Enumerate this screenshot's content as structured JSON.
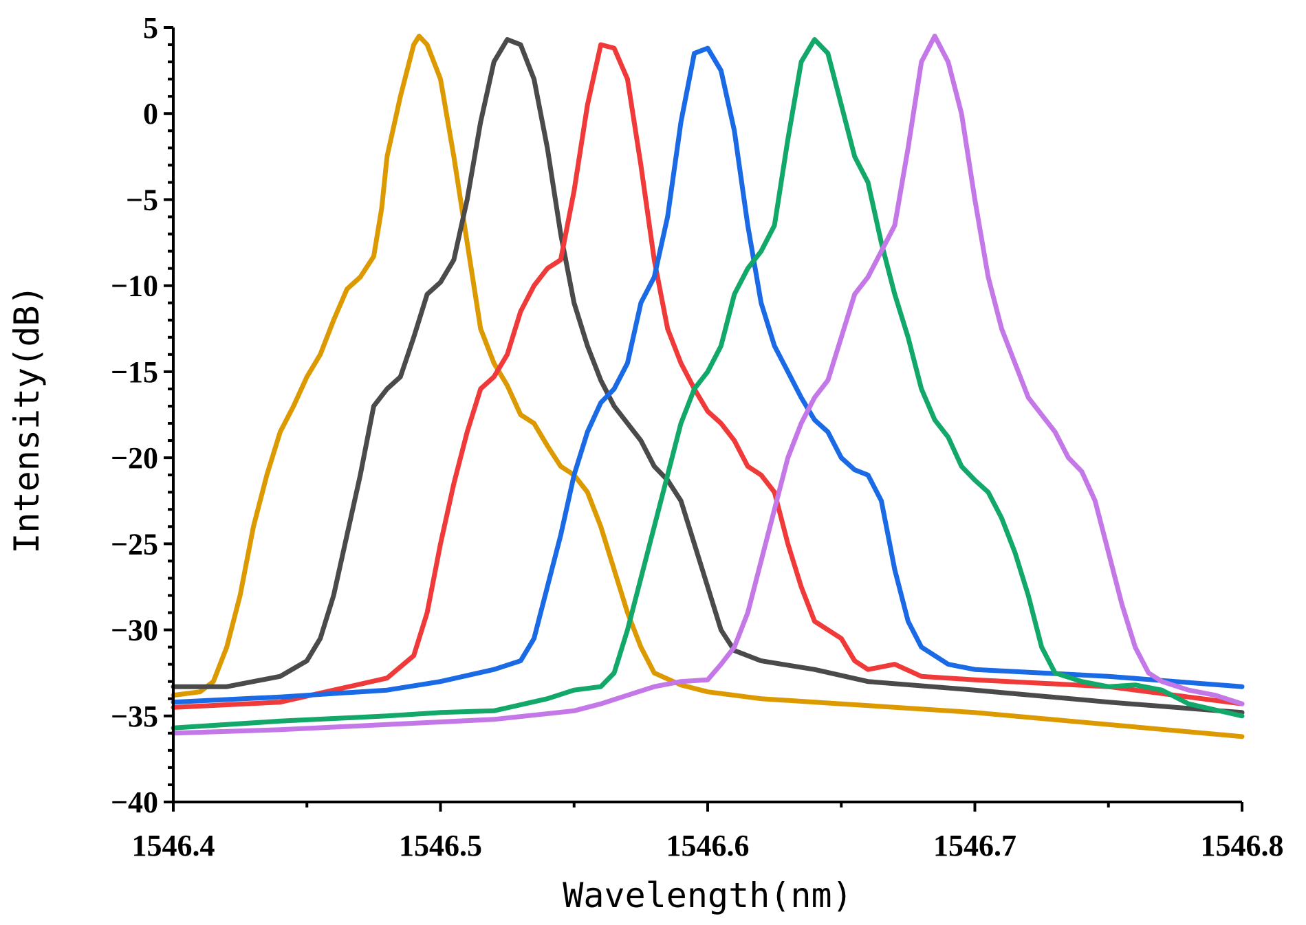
{
  "chart_data": {
    "type": "line",
    "title": "",
    "xlabel": "Wavelength(nm)",
    "ylabel": "Intensity(dB)",
    "xlim": [
      1546.4,
      1546.8
    ],
    "ylim": [
      -40,
      5
    ],
    "x_ticks": [
      1546.4,
      1546.5,
      1546.6,
      1546.7,
      1546.8
    ],
    "x_tick_labels": [
      "1546.4",
      "1546.5",
      "1546.6",
      "1546.7",
      "1546.8"
    ],
    "x_minor_step": 0.05,
    "y_ticks": [
      5,
      0,
      -5,
      -10,
      -15,
      -20,
      -25,
      -30,
      -35,
      -40
    ],
    "y_tick_labels": [
      "5",
      "0",
      "−5",
      "−10",
      "−15",
      "−20",
      "−25",
      "−30",
      "−35",
      "−40"
    ],
    "y_minor_step": 1,
    "grid": false,
    "series": [
      {
        "name": "orange",
        "color": "#DC9A00",
        "points": [
          [
            1546.4,
            -33.8
          ],
          [
            1546.41,
            -33.6
          ],
          [
            1546.415,
            -33.0
          ],
          [
            1546.42,
            -31.0
          ],
          [
            1546.425,
            -28.0
          ],
          [
            1546.43,
            -24.0
          ],
          [
            1546.435,
            -21.0
          ],
          [
            1546.44,
            -18.5
          ],
          [
            1546.445,
            -17.0
          ],
          [
            1546.45,
            -15.3
          ],
          [
            1546.455,
            -14.0
          ],
          [
            1546.46,
            -12.0
          ],
          [
            1546.465,
            -10.2
          ],
          [
            1546.47,
            -9.5
          ],
          [
            1546.475,
            -8.3
          ],
          [
            1546.478,
            -5.5
          ],
          [
            1546.48,
            -2.5
          ],
          [
            1546.485,
            1.0
          ],
          [
            1546.49,
            4.0
          ],
          [
            1546.492,
            4.5
          ],
          [
            1546.495,
            4.0
          ],
          [
            1546.5,
            2.0
          ],
          [
            1546.505,
            -2.5
          ],
          [
            1546.51,
            -7.5
          ],
          [
            1546.515,
            -12.5
          ],
          [
            1546.52,
            -14.5
          ],
          [
            1546.525,
            -15.8
          ],
          [
            1546.53,
            -17.5
          ],
          [
            1546.535,
            -18.0
          ],
          [
            1546.54,
            -19.3
          ],
          [
            1546.545,
            -20.5
          ],
          [
            1546.55,
            -21.0
          ],
          [
            1546.555,
            -22.0
          ],
          [
            1546.56,
            -24.0
          ],
          [
            1546.565,
            -26.5
          ],
          [
            1546.57,
            -29.0
          ],
          [
            1546.575,
            -31.0
          ],
          [
            1546.58,
            -32.5
          ],
          [
            1546.59,
            -33.2
          ],
          [
            1546.6,
            -33.6
          ],
          [
            1546.62,
            -34.0
          ],
          [
            1546.65,
            -34.3
          ],
          [
            1546.7,
            -34.8
          ],
          [
            1546.75,
            -35.5
          ],
          [
            1546.8,
            -36.2
          ]
        ]
      },
      {
        "name": "dark-gray",
        "color": "#4A4A4A",
        "points": [
          [
            1546.4,
            -33.3
          ],
          [
            1546.42,
            -33.3
          ],
          [
            1546.43,
            -33.0
          ],
          [
            1546.44,
            -32.7
          ],
          [
            1546.45,
            -31.8
          ],
          [
            1546.455,
            -30.5
          ],
          [
            1546.46,
            -28.0
          ],
          [
            1546.465,
            -24.5
          ],
          [
            1546.47,
            -21.0
          ],
          [
            1546.475,
            -17.0
          ],
          [
            1546.48,
            -16.0
          ],
          [
            1546.485,
            -15.3
          ],
          [
            1546.49,
            -13.0
          ],
          [
            1546.495,
            -10.5
          ],
          [
            1546.5,
            -9.8
          ],
          [
            1546.505,
            -8.5
          ],
          [
            1546.51,
            -5.0
          ],
          [
            1546.515,
            -0.5
          ],
          [
            1546.52,
            3.0
          ],
          [
            1546.525,
            4.3
          ],
          [
            1546.53,
            4.0
          ],
          [
            1546.535,
            2.0
          ],
          [
            1546.54,
            -2.0
          ],
          [
            1546.545,
            -7.0
          ],
          [
            1546.55,
            -11.0
          ],
          [
            1546.555,
            -13.5
          ],
          [
            1546.56,
            -15.5
          ],
          [
            1546.565,
            -17.0
          ],
          [
            1546.57,
            -18.0
          ],
          [
            1546.575,
            -19.0
          ],
          [
            1546.58,
            -20.5
          ],
          [
            1546.585,
            -21.3
          ],
          [
            1546.59,
            -22.5
          ],
          [
            1546.595,
            -25.0
          ],
          [
            1546.6,
            -27.5
          ],
          [
            1546.605,
            -30.0
          ],
          [
            1546.61,
            -31.2
          ],
          [
            1546.62,
            -31.8
          ],
          [
            1546.64,
            -32.3
          ],
          [
            1546.66,
            -33.0
          ],
          [
            1546.7,
            -33.5
          ],
          [
            1546.75,
            -34.2
          ],
          [
            1546.8,
            -34.8
          ]
        ]
      },
      {
        "name": "red",
        "color": "#F03A3A",
        "points": [
          [
            1546.4,
            -34.5
          ],
          [
            1546.44,
            -34.2
          ],
          [
            1546.46,
            -33.5
          ],
          [
            1546.48,
            -32.8
          ],
          [
            1546.49,
            -31.5
          ],
          [
            1546.495,
            -29.0
          ],
          [
            1546.5,
            -25.0
          ],
          [
            1546.505,
            -21.5
          ],
          [
            1546.51,
            -18.5
          ],
          [
            1546.515,
            -16.0
          ],
          [
            1546.52,
            -15.3
          ],
          [
            1546.525,
            -14.0
          ],
          [
            1546.53,
            -11.5
          ],
          [
            1546.535,
            -10.0
          ],
          [
            1546.54,
            -9.0
          ],
          [
            1546.545,
            -8.5
          ],
          [
            1546.55,
            -4.5
          ],
          [
            1546.555,
            0.5
          ],
          [
            1546.56,
            4.0
          ],
          [
            1546.565,
            3.8
          ],
          [
            1546.57,
            2.0
          ],
          [
            1546.575,
            -3.0
          ],
          [
            1546.58,
            -8.5
          ],
          [
            1546.585,
            -12.5
          ],
          [
            1546.59,
            -14.5
          ],
          [
            1546.595,
            -16.0
          ],
          [
            1546.6,
            -17.3
          ],
          [
            1546.605,
            -18.0
          ],
          [
            1546.61,
            -19.0
          ],
          [
            1546.615,
            -20.5
          ],
          [
            1546.62,
            -21.0
          ],
          [
            1546.625,
            -22.0
          ],
          [
            1546.63,
            -25.0
          ],
          [
            1546.635,
            -27.5
          ],
          [
            1546.64,
            -29.5
          ],
          [
            1546.65,
            -30.5
          ],
          [
            1546.655,
            -31.8
          ],
          [
            1546.66,
            -32.3
          ],
          [
            1546.67,
            -32.0
          ],
          [
            1546.68,
            -32.7
          ],
          [
            1546.7,
            -32.9
          ],
          [
            1546.75,
            -33.3
          ],
          [
            1546.8,
            -34.3
          ]
        ]
      },
      {
        "name": "blue",
        "color": "#1A6AE6",
        "points": [
          [
            1546.4,
            -34.2
          ],
          [
            1546.44,
            -33.9
          ],
          [
            1546.48,
            -33.5
          ],
          [
            1546.5,
            -33.0
          ],
          [
            1546.52,
            -32.3
          ],
          [
            1546.53,
            -31.8
          ],
          [
            1546.535,
            -30.5
          ],
          [
            1546.54,
            -27.5
          ],
          [
            1546.545,
            -24.5
          ],
          [
            1546.55,
            -21.0
          ],
          [
            1546.555,
            -18.5
          ],
          [
            1546.56,
            -16.8
          ],
          [
            1546.565,
            -16.0
          ],
          [
            1546.57,
            -14.5
          ],
          [
            1546.575,
            -11.0
          ],
          [
            1546.58,
            -9.5
          ],
          [
            1546.585,
            -6.0
          ],
          [
            1546.59,
            -0.5
          ],
          [
            1546.595,
            3.5
          ],
          [
            1546.6,
            3.8
          ],
          [
            1546.605,
            2.5
          ],
          [
            1546.61,
            -1.0
          ],
          [
            1546.615,
            -6.5
          ],
          [
            1546.62,
            -11.0
          ],
          [
            1546.625,
            -13.5
          ],
          [
            1546.63,
            -15.0
          ],
          [
            1546.635,
            -16.5
          ],
          [
            1546.64,
            -17.8
          ],
          [
            1546.645,
            -18.5
          ],
          [
            1546.65,
            -20.0
          ],
          [
            1546.655,
            -20.7
          ],
          [
            1546.66,
            -21.0
          ],
          [
            1546.665,
            -22.5
          ],
          [
            1546.67,
            -26.5
          ],
          [
            1546.675,
            -29.5
          ],
          [
            1546.68,
            -31.0
          ],
          [
            1546.69,
            -32.0
          ],
          [
            1546.7,
            -32.3
          ],
          [
            1546.75,
            -32.7
          ],
          [
            1546.8,
            -33.3
          ]
        ]
      },
      {
        "name": "green",
        "color": "#12A86A",
        "points": [
          [
            1546.4,
            -35.7
          ],
          [
            1546.44,
            -35.3
          ],
          [
            1546.48,
            -35.0
          ],
          [
            1546.5,
            -34.8
          ],
          [
            1546.52,
            -34.7
          ],
          [
            1546.54,
            -34.0
          ],
          [
            1546.55,
            -33.5
          ],
          [
            1546.56,
            -33.3
          ],
          [
            1546.565,
            -32.5
          ],
          [
            1546.57,
            -30.0
          ],
          [
            1546.575,
            -27.0
          ],
          [
            1546.58,
            -24.0
          ],
          [
            1546.585,
            -21.0
          ],
          [
            1546.59,
            -18.0
          ],
          [
            1546.595,
            -16.0
          ],
          [
            1546.6,
            -15.0
          ],
          [
            1546.605,
            -13.5
          ],
          [
            1546.61,
            -10.5
          ],
          [
            1546.615,
            -9.0
          ],
          [
            1546.62,
            -8.0
          ],
          [
            1546.625,
            -6.5
          ],
          [
            1546.63,
            -1.5
          ],
          [
            1546.635,
            3.0
          ],
          [
            1546.64,
            4.3
          ],
          [
            1546.645,
            3.5
          ],
          [
            1546.65,
            0.5
          ],
          [
            1546.655,
            -2.5
          ],
          [
            1546.66,
            -4.0
          ],
          [
            1546.665,
            -7.5
          ],
          [
            1546.67,
            -10.5
          ],
          [
            1546.675,
            -13.0
          ],
          [
            1546.68,
            -16.0
          ],
          [
            1546.685,
            -17.8
          ],
          [
            1546.69,
            -18.8
          ],
          [
            1546.695,
            -20.5
          ],
          [
            1546.7,
            -21.3
          ],
          [
            1546.705,
            -22.0
          ],
          [
            1546.71,
            -23.5
          ],
          [
            1546.715,
            -25.5
          ],
          [
            1546.72,
            -28.0
          ],
          [
            1546.725,
            -31.0
          ],
          [
            1546.73,
            -32.5
          ],
          [
            1546.74,
            -33.0
          ],
          [
            1546.75,
            -33.3
          ],
          [
            1546.76,
            -33.2
          ],
          [
            1546.77,
            -33.5
          ],
          [
            1546.78,
            -34.3
          ],
          [
            1546.8,
            -35.0
          ]
        ]
      },
      {
        "name": "purple",
        "color": "#C478E8",
        "points": [
          [
            1546.4,
            -36.0
          ],
          [
            1546.44,
            -35.8
          ],
          [
            1546.48,
            -35.5
          ],
          [
            1546.52,
            -35.2
          ],
          [
            1546.55,
            -34.7
          ],
          [
            1546.56,
            -34.3
          ],
          [
            1546.57,
            -33.8
          ],
          [
            1546.58,
            -33.3
          ],
          [
            1546.59,
            -33.0
          ],
          [
            1546.6,
            -32.9
          ],
          [
            1546.605,
            -32.0
          ],
          [
            1546.61,
            -31.0
          ],
          [
            1546.615,
            -29.0
          ],
          [
            1546.62,
            -26.0
          ],
          [
            1546.625,
            -23.0
          ],
          [
            1546.63,
            -20.0
          ],
          [
            1546.635,
            -18.0
          ],
          [
            1546.64,
            -16.5
          ],
          [
            1546.645,
            -15.5
          ],
          [
            1546.65,
            -13.0
          ],
          [
            1546.655,
            -10.5
          ],
          [
            1546.66,
            -9.5
          ],
          [
            1546.665,
            -8.0
          ],
          [
            1546.67,
            -6.5
          ],
          [
            1546.675,
            -2.0
          ],
          [
            1546.68,
            3.0
          ],
          [
            1546.685,
            4.5
          ],
          [
            1546.69,
            3.0
          ],
          [
            1546.695,
            0.0
          ],
          [
            1546.7,
            -5.0
          ],
          [
            1546.705,
            -9.5
          ],
          [
            1546.71,
            -12.5
          ],
          [
            1546.715,
            -14.5
          ],
          [
            1546.72,
            -16.5
          ],
          [
            1546.725,
            -17.5
          ],
          [
            1546.73,
            -18.5
          ],
          [
            1546.735,
            -20.0
          ],
          [
            1546.74,
            -20.8
          ],
          [
            1546.745,
            -22.5
          ],
          [
            1546.75,
            -25.5
          ],
          [
            1546.755,
            -28.5
          ],
          [
            1546.76,
            -31.0
          ],
          [
            1546.765,
            -32.5
          ],
          [
            1546.77,
            -33.0
          ],
          [
            1546.78,
            -33.5
          ],
          [
            1546.79,
            -33.8
          ],
          [
            1546.8,
            -34.3
          ]
        ]
      }
    ]
  }
}
